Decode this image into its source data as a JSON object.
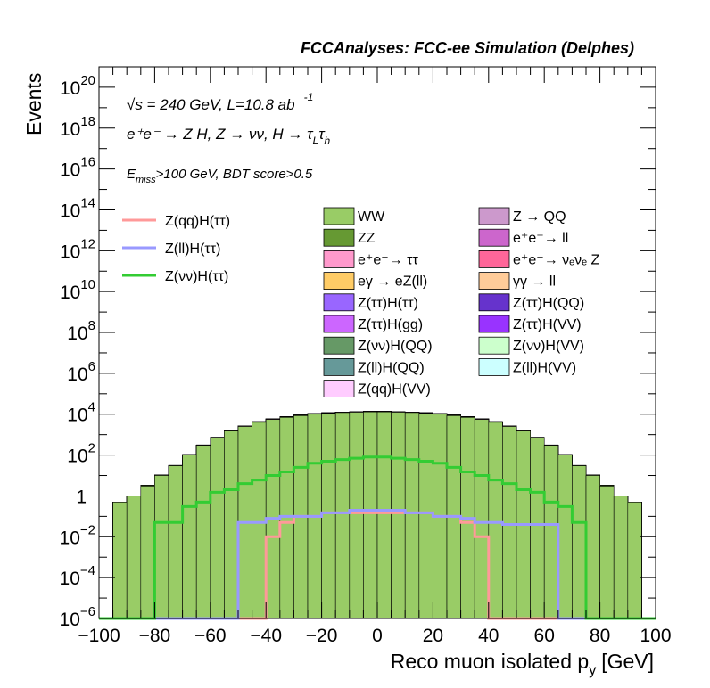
{
  "chart_data": {
    "type": "histogram",
    "title": "FCCAnalyses: FCC-ee Simulation (Delphes)",
    "xlabel": "Reco muon isolated p",
    "xlabel_sub": "y",
    "xlabel_unit": "[GeV]",
    "ylabel": "Events",
    "xlim": [
      -100,
      100
    ],
    "ylim": [
      1e-06,
      1e+21
    ],
    "log_y": true,
    "x_ticks": [
      "−100",
      "−80",
      "−60",
      "−40",
      "−20",
      "0",
      "20",
      "40",
      "60",
      "80",
      "100"
    ],
    "y_ticks": [
      {
        "mant": "10",
        "exp": "−6"
      },
      {
        "mant": "10",
        "exp": "−4"
      },
      {
        "mant": "10",
        "exp": "−2"
      },
      {
        "mant": "1",
        "exp": ""
      },
      {
        "mant": "10",
        "exp": "2"
      },
      {
        "mant": "10",
        "exp": "4"
      },
      {
        "mant": "10",
        "exp": "6"
      },
      {
        "mant": "10",
        "exp": "8"
      },
      {
        "mant": "10",
        "exp": "10"
      },
      {
        "mant": "10",
        "exp": "12"
      },
      {
        "mant": "10",
        "exp": "14"
      },
      {
        "mant": "10",
        "exp": "16"
      },
      {
        "mant": "10",
        "exp": "18"
      },
      {
        "mant": "10",
        "exp": "20"
      }
    ],
    "annotations": {
      "energy": "√s = 240 GeV, L=10.8 ab",
      "energy_exp": "-1",
      "process": "e⁺e⁻ → Z H, Z → νν, H → τ",
      "process_sub1": "L",
      "process_tail": "τ",
      "process_sub2": "h",
      "cut_main": "E",
      "cut_sub": "miss",
      "cut_tail": ">100 GeV, BDT score>0.5"
    },
    "bins": {
      "lo": -100,
      "hi": 100,
      "width": 5
    },
    "stack": [
      {
        "name": "WW",
        "color": "#99cc66",
        "values": [
          0.0,
          0.5,
          1,
          3,
          10,
          30,
          100,
          300,
          700,
          1500,
          2500,
          4000,
          5500,
          7000,
          8500,
          10000,
          11000,
          12000,
          12500,
          13000,
          13000,
          12500,
          12000,
          11000,
          10000,
          8500,
          7000,
          5500,
          4000,
          2500,
          1500,
          700,
          300,
          100,
          30,
          10,
          3,
          1,
          0.5,
          0.0
        ]
      },
      {
        "name": "ZZ",
        "color": "#669933",
        "values": [
          0,
          0,
          0,
          0.3,
          0.5,
          0.6,
          0.8,
          1,
          1.5,
          2,
          3,
          3,
          4,
          4,
          5,
          5,
          5,
          6,
          6,
          6,
          6,
          6,
          6,
          5,
          5,
          5,
          4,
          4,
          3,
          3,
          2,
          1.5,
          1,
          0.8,
          0.6,
          0.5,
          0.3,
          0,
          0,
          0
        ]
      },
      {
        "name": "e⁺e⁻→ ττ",
        "color": "#ff99cc",
        "values": [
          0,
          0,
          0,
          0,
          0,
          0.3,
          3,
          10,
          30,
          80,
          150,
          250,
          350,
          450,
          550,
          600,
          650,
          700,
          700,
          700,
          700,
          700,
          700,
          650,
          600,
          550,
          450,
          350,
          250,
          150,
          80,
          30,
          10,
          3,
          0.3,
          0,
          0,
          0,
          0,
          0
        ]
      },
      {
        "name": "eγ → eZ(ll)",
        "color": "#ffcc66",
        "values": [
          0,
          0,
          0,
          0,
          0,
          0,
          0,
          0,
          0.01,
          0.02,
          0.05,
          0.1,
          0.2,
          0.3,
          0.3,
          0.4,
          0.4,
          0.5,
          0.5,
          0.5,
          0.5,
          0.5,
          0.5,
          0.4,
          0.4,
          0.3,
          0.3,
          0.2,
          0.1,
          0.05,
          0.02,
          0.01,
          0,
          0,
          0,
          0,
          0,
          0,
          0,
          0
        ]
      },
      {
        "name": "Z(ττ)H(ττ)",
        "color": "#9966ff",
        "values": [
          0,
          0,
          0,
          0,
          0,
          0,
          0,
          0,
          0.01,
          0.02,
          0.05,
          0.05,
          0.1,
          0.1,
          0.1,
          0.1,
          0.1,
          0.1,
          0.1,
          0.1,
          0.1,
          0.1,
          0.1,
          0.1,
          0.1,
          0.1,
          0.1,
          0.1,
          0.05,
          0.05,
          0.02,
          0.01,
          0,
          0,
          0,
          0,
          0,
          0,
          0,
          0
        ]
      },
      {
        "name": "Z(ττ)H(gg)",
        "color": "#cc66ff",
        "values": [
          0,
          0,
          0,
          0,
          0,
          0,
          0,
          0,
          0,
          0,
          0.01,
          0.02,
          0.03,
          0.05,
          0.05,
          0.05,
          0.05,
          0.05,
          0.05,
          0.05,
          0.05,
          0.05,
          0.05,
          0.05,
          0.05,
          0.05,
          0.03,
          0.02,
          0.01,
          0,
          0,
          0,
          0,
          0,
          0,
          0,
          0,
          0,
          0,
          0
        ]
      },
      {
        "name": "Z(νν)H(QQ)",
        "color": "#669966",
        "values": [
          0,
          0,
          0,
          0,
          0,
          0,
          0,
          0,
          0,
          0,
          0,
          0,
          0.01,
          0.01,
          0.02,
          0.02,
          0.03,
          0.03,
          0.03,
          0.03,
          0.03,
          0.03,
          0.03,
          0.03,
          0.02,
          0.02,
          0.01,
          0.01,
          0,
          0,
          0,
          0,
          0,
          0,
          0,
          0,
          0,
          0,
          0,
          0
        ]
      },
      {
        "name": "Z(ll)H(QQ)",
        "color": "#669999",
        "values": [
          0,
          0,
          0,
          0,
          0,
          0,
          0,
          0,
          0,
          0,
          0,
          0,
          0,
          0,
          0,
          0,
          3e-05,
          0,
          0,
          0,
          0,
          0,
          0,
          0,
          0,
          0,
          0,
          0,
          0,
          0,
          0,
          0,
          0,
          0,
          0,
          0,
          0,
          0,
          0,
          0
        ]
      },
      {
        "name": "Z(qq)H(VV)",
        "color": "#ffccff",
        "values": [
          0,
          0,
          0,
          0,
          0,
          0,
          0,
          0,
          0,
          0,
          0,
          0.01,
          0.05,
          0.1,
          0.2,
          0.3,
          0.3,
          0.4,
          0.4,
          0.4,
          0.4,
          0.4,
          0.4,
          0.3,
          0.3,
          0.2,
          0.1,
          0.05,
          0.01,
          0,
          0,
          0,
          0,
          0,
          0,
          0,
          0,
          0,
          0,
          0
        ]
      },
      {
        "name": "Z → QQ",
        "color": "#cc99cc",
        "values": [
          0,
          0,
          0,
          0,
          0,
          0,
          0,
          0,
          0,
          0,
          0,
          0,
          0,
          0,
          0,
          0,
          0,
          0,
          0.5,
          0.5,
          0.5,
          0.5,
          0,
          0,
          0,
          0,
          0,
          0,
          0,
          0,
          0,
          0,
          0,
          0,
          0,
          0,
          0,
          0,
          0,
          0
        ]
      },
      {
        "name": "e⁺e⁻→ ll",
        "color": "#cc66cc",
        "values": [
          0,
          0,
          0,
          0,
          0,
          0,
          0,
          0.05,
          0.2,
          0.5,
          1,
          2,
          3,
          4,
          5,
          6,
          6,
          7,
          7,
          7,
          7,
          7,
          7,
          6,
          6,
          5,
          4,
          3,
          2,
          1,
          0.5,
          0.2,
          0.05,
          0,
          0,
          0,
          0,
          0,
          0,
          0
        ]
      },
      {
        "name": "e⁺e⁻→ νₑνₑ Z",
        "color": "#ff6699",
        "values": [
          0,
          0,
          0,
          0,
          0,
          0.005,
          0.1,
          0.3,
          0.6,
          1,
          1.5,
          2,
          2.5,
          3,
          3,
          3,
          3,
          3,
          3,
          3,
          3,
          3,
          3,
          3,
          3,
          3,
          2.5,
          2,
          1.5,
          1,
          0.6,
          0.3,
          0.1,
          0.005,
          0,
          0,
          0,
          0,
          0,
          0
        ]
      },
      {
        "name": "γγ → ll",
        "color": "#ffcc99",
        "values": [
          0,
          0,
          0,
          0,
          0,
          0,
          0,
          0,
          0,
          0,
          0.02,
          0.05,
          0.1,
          0.2,
          0.3,
          0.4,
          0.4,
          0.5,
          0.5,
          0.5,
          0.5,
          0.5,
          0.5,
          0.4,
          0.4,
          0.3,
          0.2,
          0.1,
          0.05,
          0.02,
          0,
          0,
          0,
          0,
          0,
          0,
          0,
          0,
          0,
          0
        ]
      },
      {
        "name": "Z(ττ)H(QQ)",
        "color": "#6633cc",
        "values": [
          0,
          0,
          0,
          0,
          0,
          0,
          0,
          0,
          0,
          0,
          0,
          0,
          0,
          0,
          0,
          0.05,
          0.08,
          0.1,
          0.12,
          0.15,
          0.15,
          0.12,
          0.1,
          0.08,
          0.05,
          0,
          0,
          0,
          0,
          0,
          0,
          0,
          0,
          0,
          0,
          0,
          0,
          0,
          0,
          0
        ]
      },
      {
        "name": "Z(ττ)H(VV)",
        "color": "#9933ff",
        "values": [
          0,
          0,
          0,
          0,
          0,
          0,
          0,
          0,
          0,
          0.005,
          0.01,
          0.02,
          0.02,
          0.03,
          0.03,
          0.03,
          0.03,
          0.03,
          0.03,
          0.03,
          0.03,
          0.03,
          0.03,
          0.03,
          0.03,
          0.02,
          0.02,
          0.01,
          0.005,
          0,
          0,
          0,
          0,
          0,
          0,
          0,
          0,
          0,
          0,
          0
        ]
      },
      {
        "name": "Z(νν)H(VV)",
        "color": "#ccffcc",
        "values": [
          0,
          0,
          0,
          0,
          0,
          0,
          0.3,
          0.5,
          1,
          1,
          1.2,
          1.5,
          1.5,
          1.5,
          1.5,
          1.5,
          1.5,
          1.5,
          1.5,
          1.5,
          1.5,
          1.5,
          1.5,
          1.5,
          1.5,
          1.5,
          1.5,
          1.5,
          1.2,
          1,
          1,
          0.5,
          0.3,
          0,
          0,
          0,
          0,
          0,
          0,
          0
        ]
      },
      {
        "name": "Z(ll)H(VV)",
        "color": "#ccffff",
        "values": [
          0,
          0,
          0,
          0,
          0,
          0,
          0,
          0,
          0.005,
          0.01,
          0.01,
          0.02,
          0.02,
          0.03,
          0.03,
          0.03,
          0.03,
          0.03,
          0.03,
          0.03,
          0.03,
          0.03,
          0.03,
          0.03,
          0.03,
          0.03,
          0.02,
          0.02,
          0.01,
          0.01,
          0.005,
          0,
          0,
          0,
          0,
          0,
          0,
          0,
          0,
          0
        ]
      }
    ],
    "signals": [
      {
        "name": "Z(qq)H(ττ)",
        "color": "#ff9999",
        "values": [
          0,
          0,
          0,
          0,
          0,
          0,
          0,
          0,
          0,
          0,
          0,
          0,
          0.01,
          0.05,
          0.1,
          0.1,
          0.15,
          0.15,
          0.15,
          0.15,
          0.15,
          0.15,
          0.15,
          0.15,
          0.1,
          0.1,
          0.05,
          0.01,
          0,
          0,
          0,
          0,
          0,
          0,
          0,
          0,
          0,
          0,
          0,
          0
        ]
      },
      {
        "name": "Z(ll)H(ττ)",
        "color": "#9999ff",
        "values": [
          0,
          0,
          0,
          0,
          0,
          0,
          0,
          0,
          0,
          0,
          0.05,
          0.05,
          0.08,
          0.1,
          0.1,
          0.1,
          0.15,
          0.15,
          0.2,
          0.2,
          0.2,
          0.2,
          0.15,
          0.15,
          0.1,
          0.1,
          0.08,
          0.05,
          0.05,
          0.04,
          0.04,
          0.04,
          0.04,
          0,
          0,
          0,
          0,
          0,
          0,
          0
        ]
      },
      {
        "name": "Z(νν)H(ττ)",
        "color": "#33cc33",
        "values": [
          0,
          0,
          0,
          0,
          0.05,
          0.05,
          0.3,
          0.5,
          1.5,
          2,
          4,
          6,
          10,
          15,
          25,
          40,
          50,
          60,
          70,
          80,
          80,
          70,
          60,
          50,
          40,
          25,
          15,
          10,
          6,
          4,
          2,
          1.5,
          0.5,
          0.3,
          0.05,
          0,
          0,
          0,
          0,
          0
        ]
      }
    ]
  }
}
